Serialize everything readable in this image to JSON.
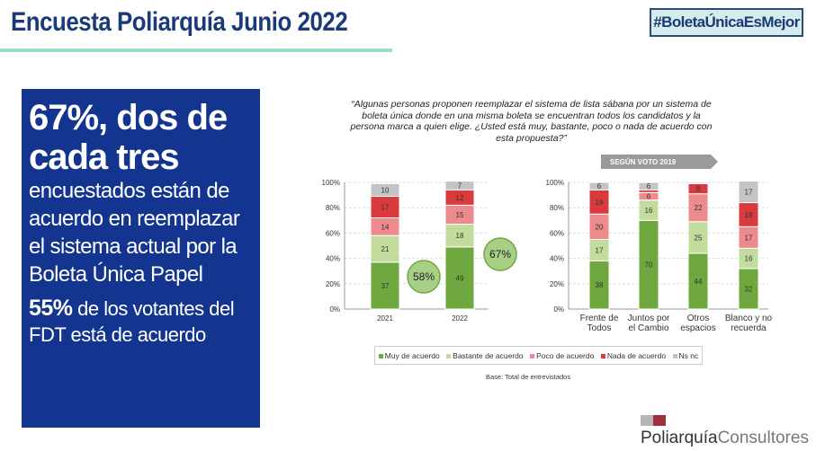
{
  "header": {
    "title": "Encuesta Poliarquía Junio 2022",
    "hashtag": "#BoletaÚnicaEsMejor"
  },
  "highlight": {
    "line1": "67%, dos de cada tres",
    "line2": "encuestados están de acuerdo en reemplazar el sistema actual por la Boleta Única Papel",
    "pct": "55%",
    "line3": " de los votantes del FDT está de acuerdo"
  },
  "question": "“Algunas personas proponen reemplazar el sistema de lista sábana por un sistema de boleta única donde en una misma boleta se encuentran todos los candidatos y la persona marca a quien elige. ¿Usted está muy, bastante, poco o nada de acuerdo con esta propuesta?”",
  "footer": {
    "base": "Base: Total de entrevistados",
    "logo_a": "Poliarquía",
    "logo_b": "Consultores"
  },
  "colors": {
    "Muy de acuerdo": "#6fa83e",
    "Bastante de acuerdo": "#c3dc9e",
    "Poco de acuerdo": "#ec8a8c",
    "Nada de acuerdo": "#d93a3e",
    "Ns nc": "#c4c4c4"
  },
  "chart_data": [
    {
      "type": "bar",
      "stacked": true,
      "categories": [
        "2021",
        "2022"
      ],
      "ylim": [
        0,
        100
      ],
      "yticks": [
        "0%",
        "20%",
        "40%",
        "60%",
        "80%",
        "100%"
      ],
      "series": [
        {
          "name": "Muy de acuerdo",
          "values": [
            37,
            49
          ]
        },
        {
          "name": "Bastante de acuerdo",
          "values": [
            21,
            18
          ]
        },
        {
          "name": "Poco de acuerdo",
          "values": [
            14,
            15
          ]
        },
        {
          "name": "Nada de acuerdo",
          "values": [
            17,
            12
          ]
        },
        {
          "name": "Ns nc",
          "values": [
            10,
            7
          ]
        }
      ],
      "annotations": [
        "58%",
        "67%"
      ],
      "grid": true,
      "legend": "bottom"
    },
    {
      "type": "bar",
      "stacked": true,
      "title": "SEGÚN VOTO 2019",
      "categories": [
        "Frente de Todos",
        "Juntos por el Cambio",
        "Otros espacios",
        "Blanco y no recuerda"
      ],
      "ylim": [
        0,
        100
      ],
      "yticks": [
        "0%",
        "20%",
        "40%",
        "60%",
        "80%",
        "100%"
      ],
      "series": [
        {
          "name": "Muy de acuerdo",
          "values": [
            38,
            70,
            44,
            32
          ]
        },
        {
          "name": "Bastante de acuerdo",
          "values": [
            17,
            16,
            25,
            16
          ]
        },
        {
          "name": "Poco de acuerdo",
          "values": [
            20,
            6,
            22,
            17
          ]
        },
        {
          "name": "Nada de acuerdo",
          "values": [
            19,
            2,
            8,
            19
          ]
        },
        {
          "name": "Ns nc",
          "values": [
            6,
            6,
            1,
            17
          ]
        }
      ],
      "grid": true,
      "legend": "bottom"
    }
  ]
}
